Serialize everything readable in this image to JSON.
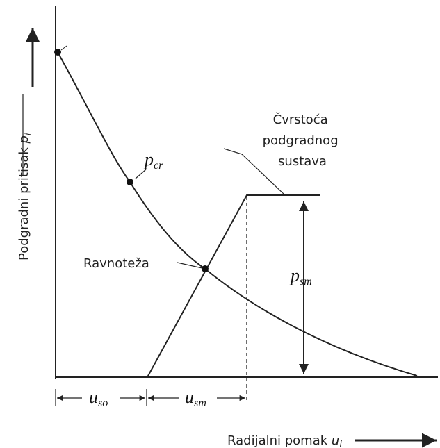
{
  "labels": {
    "strength": [
      "Čvrstoća",
      "podgradnog",
      "sustava"
    ],
    "pcr": {
      "symbol": "p",
      "sub": "cr"
    },
    "equilibrium": "Ravnoteža",
    "psm": {
      "symbol": "p",
      "sub": "sm"
    },
    "uso": {
      "symbol": "u",
      "sub": "so"
    },
    "usm": {
      "symbol": "u",
      "sub": "sm"
    },
    "y_axis": {
      "text": "Podgradni pritisak",
      "symbol": "p",
      "sub": "i"
    },
    "x_axis": {
      "text": "Radijalni pomak",
      "symbol": "u",
      "sub": "i"
    }
  }
}
